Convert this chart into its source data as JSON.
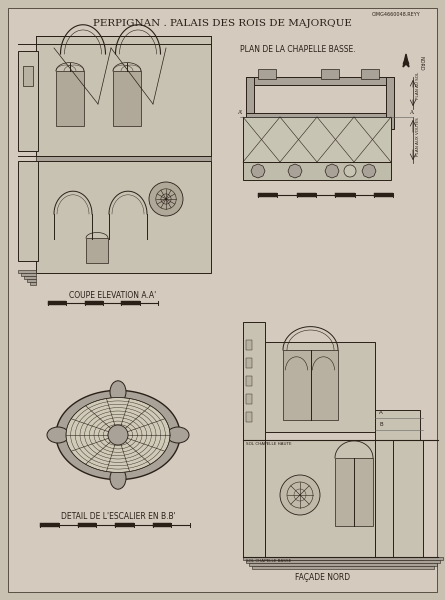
{
  "title": "PERPIGNAN . PALAIS DES ROIS DE MAJORQUE",
  "bg_color": "#c8c0b0",
  "paper_color": "#d4cbbe",
  "line_color": "#2a2018",
  "label_coupe": "COUPE ELEVATION A.A'",
  "label_escalier": "DETAIL DE L'ESCALIER EN B.B'",
  "label_plan": "PLAN DE LA CHAPELLE BASSE.",
  "label_facade": "FAÇADE NORD",
  "archive_ref": "CIMG4660048.REYY"
}
